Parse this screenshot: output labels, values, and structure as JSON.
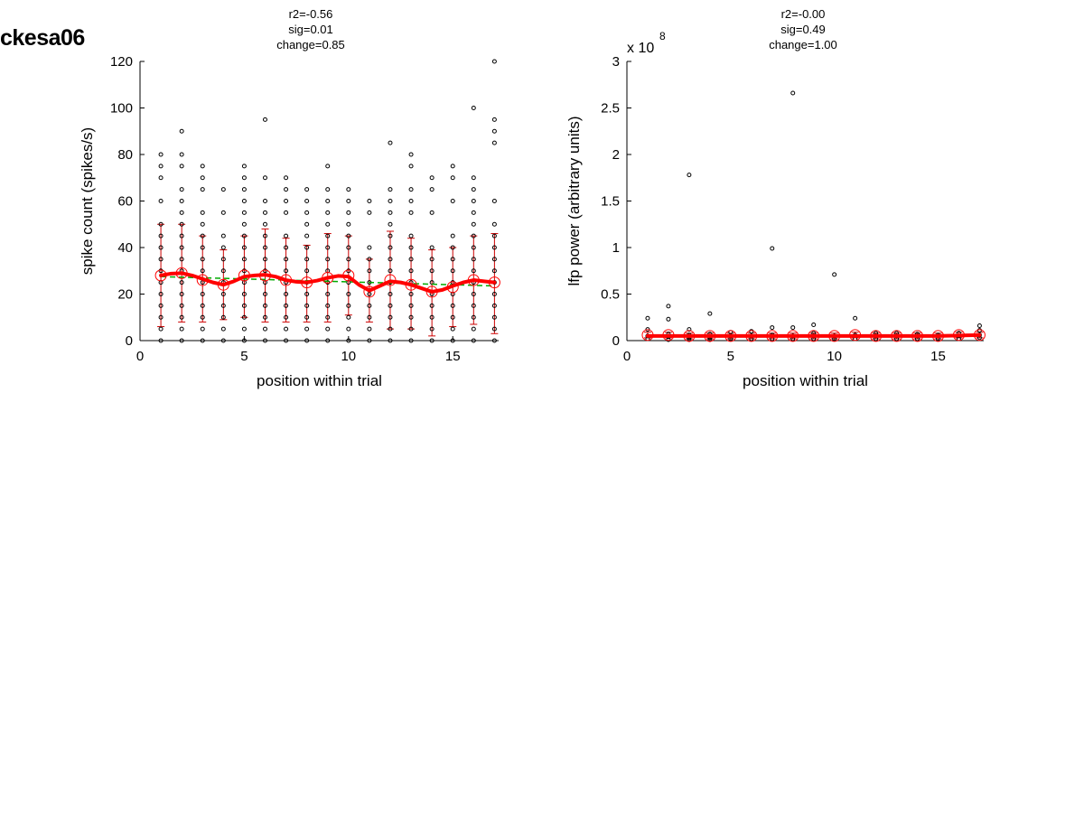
{
  "figure": {
    "title": "ckesa06"
  },
  "chart_data": [
    {
      "type": "scatter",
      "title_lines": [
        "r2=-0.56",
        "sig=0.01",
        "change=0.85"
      ],
      "xlabel": "position within trial",
      "ylabel": "spike count (spikes/s)",
      "xlim": [
        0,
        17.2
      ],
      "ylim": [
        0,
        120
      ],
      "xticks": [
        0,
        5,
        10,
        15
      ],
      "xtick_labels": [
        "0",
        "5",
        "10",
        "15"
      ],
      "yticks": [
        0,
        20,
        40,
        60,
        80,
        100,
        120
      ],
      "ytick_labels": [
        "0",
        "20",
        "40",
        "60",
        "80",
        "100",
        "120"
      ],
      "exponent_label": "",
      "exponent_sup": "",
      "grid": false,
      "raw_points": [
        {
          "x": 1,
          "y": [
            0,
            5,
            10,
            15,
            20,
            25,
            30,
            35,
            40,
            45,
            50,
            60,
            70,
            75,
            80
          ]
        },
        {
          "x": 2,
          "y": [
            0,
            5,
            10,
            15,
            20,
            25,
            30,
            35,
            40,
            45,
            50,
            55,
            60,
            65,
            75,
            80,
            90
          ]
        },
        {
          "x": 3,
          "y": [
            0,
            5,
            10,
            15,
            20,
            25,
            30,
            35,
            40,
            45,
            50,
            55,
            65,
            70,
            75
          ]
        },
        {
          "x": 4,
          "y": [
            0,
            5,
            10,
            15,
            20,
            25,
            30,
            35,
            40,
            45,
            55,
            65
          ]
        },
        {
          "x": 5,
          "y": [
            0,
            5,
            10,
            15,
            20,
            25,
            30,
            35,
            40,
            45,
            50,
            55,
            60,
            65,
            70,
            75
          ]
        },
        {
          "x": 6,
          "y": [
            0,
            5,
            10,
            15,
            20,
            25,
            30,
            35,
            40,
            45,
            50,
            55,
            60,
            70,
            95
          ]
        },
        {
          "x": 7,
          "y": [
            0,
            5,
            10,
            15,
            20,
            25,
            30,
            35,
            40,
            45,
            55,
            60,
            65,
            70
          ]
        },
        {
          "x": 8,
          "y": [
            0,
            5,
            10,
            15,
            20,
            25,
            30,
            35,
            40,
            45,
            50,
            55,
            60,
            65
          ]
        },
        {
          "x": 9,
          "y": [
            0,
            5,
            10,
            15,
            20,
            25,
            30,
            35,
            40,
            45,
            50,
            55,
            60,
            65,
            75
          ]
        },
        {
          "x": 10,
          "y": [
            0,
            5,
            10,
            15,
            20,
            25,
            30,
            35,
            40,
            45,
            50,
            55,
            60,
            65
          ]
        },
        {
          "x": 11,
          "y": [
            0,
            5,
            10,
            15,
            20,
            25,
            30,
            35,
            40,
            55,
            60
          ]
        },
        {
          "x": 12,
          "y": [
            0,
            5,
            10,
            15,
            20,
            25,
            30,
            35,
            40,
            45,
            50,
            55,
            60,
            65,
            85
          ]
        },
        {
          "x": 13,
          "y": [
            0,
            5,
            10,
            15,
            20,
            25,
            30,
            35,
            40,
            45,
            55,
            60,
            65,
            75,
            80
          ]
        },
        {
          "x": 14,
          "y": [
            0,
            5,
            10,
            15,
            20,
            25,
            30,
            35,
            40,
            55,
            65,
            70
          ]
        },
        {
          "x": 15,
          "y": [
            0,
            5,
            10,
            15,
            20,
            25,
            30,
            35,
            40,
            45,
            60,
            70,
            75
          ]
        },
        {
          "x": 16,
          "y": [
            0,
            5,
            10,
            15,
            20,
            25,
            30,
            35,
            40,
            45,
            50,
            55,
            60,
            65,
            70,
            100
          ]
        },
        {
          "x": 17,
          "y": [
            0,
            5,
            10,
            15,
            20,
            25,
            30,
            35,
            40,
            45,
            50,
            60,
            85,
            90,
            95,
            120
          ]
        }
      ],
      "means": {
        "x": [
          1,
          2,
          3,
          4,
          5,
          6,
          7,
          8,
          9,
          10,
          11,
          12,
          13,
          14,
          15,
          16,
          17
        ],
        "y": [
          28,
          29,
          26,
          24,
          28,
          28,
          26,
          25,
          27,
          28,
          21,
          26,
          24,
          21,
          23,
          26,
          25
        ]
      },
      "error_bars": {
        "upper": [
          50,
          50,
          45,
          39,
          45,
          48,
          44,
          41,
          46,
          45,
          35,
          47,
          44,
          39,
          40,
          45,
          46
        ],
        "lower": [
          6,
          8,
          8,
          9,
          10,
          8,
          8,
          8,
          8,
          11,
          8,
          5,
          5,
          2,
          6,
          7,
          3
        ]
      },
      "smoothed_line": {
        "x": [
          1,
          1.5,
          2,
          2.5,
          3,
          3.5,
          4,
          4.5,
          5,
          5.5,
          6,
          6.5,
          7,
          7.5,
          8,
          8.5,
          9,
          9.5,
          10,
          10.5,
          11,
          11.5,
          12,
          12.5,
          13,
          13.5,
          14,
          14.5,
          15,
          15.5,
          16,
          16.5,
          17
        ],
        "y": [
          28,
          28.8,
          29,
          28,
          26.5,
          25,
          24,
          25.5,
          27.5,
          28,
          28.3,
          27.5,
          26,
          25.3,
          25,
          25.8,
          27,
          27.8,
          27.5,
          24,
          21.5,
          23.5,
          25.5,
          25,
          24,
          22.5,
          21,
          21.8,
          23.5,
          25,
          26,
          25.5,
          25
        ]
      },
      "fit_line": {
        "x": [
          1,
          17
        ],
        "y": [
          27.5,
          23.5
        ]
      },
      "colors": {
        "raw": "#000000",
        "mean": "#ff0000",
        "error": "#cc0000",
        "smooth": "#ff0000",
        "fit": "#00aa00"
      }
    },
    {
      "type": "scatter",
      "title_lines": [
        "r2=-0.00",
        "sig=0.49",
        "change=1.00"
      ],
      "xlabel": "position within trial",
      "ylabel": "lfp power (arbitrary units)",
      "xlim": [
        0,
        17.2
      ],
      "ylim": [
        0,
        3
      ],
      "xticks": [
        0,
        5,
        10,
        15
      ],
      "xtick_labels": [
        "0",
        "5",
        "10",
        "15"
      ],
      "yticks": [
        0,
        0.5,
        1,
        1.5,
        2,
        2.5,
        3
      ],
      "ytick_labels": [
        "0",
        "0.5",
        "1",
        "1.5",
        "2",
        "2.5",
        "3"
      ],
      "exponent_label": "x 10",
      "exponent_sup": "8",
      "grid": false,
      "raw_points": [
        {
          "x": 1,
          "y": [
            0.02,
            0.05,
            0.12,
            0.24
          ]
        },
        {
          "x": 2,
          "y": [
            0.01,
            0.04,
            0.07,
            0.23,
            0.37
          ]
        },
        {
          "x": 3,
          "y": [
            0.01,
            0.03,
            0.06,
            0.12,
            1.78
          ]
        },
        {
          "x": 4,
          "y": [
            0.01,
            0.03,
            0.07,
            0.29
          ]
        },
        {
          "x": 5,
          "y": [
            0.02,
            0.05,
            0.09
          ]
        },
        {
          "x": 6,
          "y": [
            0.02,
            0.05,
            0.1
          ]
        },
        {
          "x": 7,
          "y": [
            0.02,
            0.06,
            0.14,
            0.99
          ]
        },
        {
          "x": 8,
          "y": [
            0.02,
            0.05,
            0.14,
            2.66
          ]
        },
        {
          "x": 9,
          "y": [
            0.02,
            0.05,
            0.08,
            0.17
          ]
        },
        {
          "x": 10,
          "y": [
            0.02,
            0.05,
            0.71
          ]
        },
        {
          "x": 11,
          "y": [
            0.02,
            0.06,
            0.24
          ]
        },
        {
          "x": 12,
          "y": [
            0.02,
            0.05,
            0.08
          ]
        },
        {
          "x": 13,
          "y": [
            0.02,
            0.05,
            0.08
          ]
        },
        {
          "x": 14,
          "y": [
            0.02,
            0.05,
            0.07
          ]
        },
        {
          "x": 15,
          "y": [
            0.02,
            0.06
          ]
        },
        {
          "x": 16,
          "y": [
            0.02,
            0.05,
            0.08
          ]
        },
        {
          "x": 17,
          "y": [
            0.03,
            0.06,
            0.11,
            0.16
          ]
        }
      ],
      "means": {
        "x": [
          1,
          2,
          3,
          4,
          5,
          6,
          7,
          8,
          9,
          10,
          11,
          12,
          13,
          14,
          15,
          16,
          17
        ],
        "y": [
          0.06,
          0.06,
          0.05,
          0.05,
          0.05,
          0.05,
          0.05,
          0.05,
          0.05,
          0.05,
          0.06,
          0.05,
          0.05,
          0.05,
          0.05,
          0.06,
          0.06
        ]
      },
      "error_bars": {
        "upper": [
          0.09,
          0.09,
          0.08,
          0.08,
          0.08,
          0.08,
          0.08,
          0.08,
          0.08,
          0.08,
          0.09,
          0.08,
          0.08,
          0.08,
          0.08,
          0.09,
          0.09
        ],
        "lower": [
          0.03,
          0.03,
          0.02,
          0.02,
          0.02,
          0.02,
          0.02,
          0.02,
          0.02,
          0.02,
          0.03,
          0.02,
          0.02,
          0.02,
          0.02,
          0.03,
          0.03
        ]
      },
      "smoothed_line": {
        "x": [
          1,
          3,
          5,
          7,
          9,
          11,
          13,
          15,
          17
        ],
        "y": [
          0.05,
          0.05,
          0.05,
          0.05,
          0.05,
          0.05,
          0.05,
          0.05,
          0.06
        ]
      },
      "fit_line": {
        "x": [
          1,
          17
        ],
        "y": [
          0.05,
          0.05
        ]
      },
      "colors": {
        "raw": "#000000",
        "mean": "#ff0000",
        "error": "#cc0000",
        "smooth": "#ff0000",
        "fit": "#00aa00"
      }
    }
  ]
}
